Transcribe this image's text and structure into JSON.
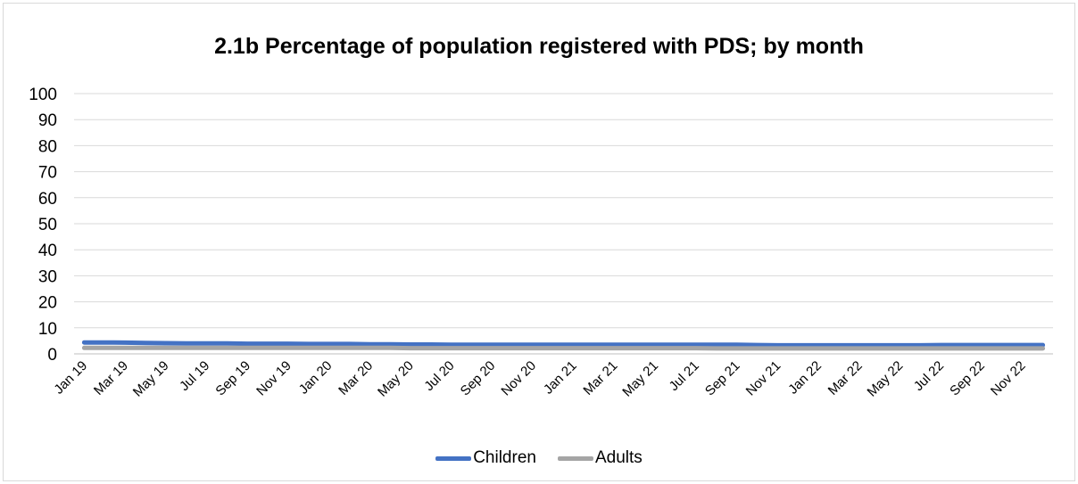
{
  "chart_data": {
    "type": "line",
    "title": "2.1b Percentage of population registered with PDS; by month",
    "xlabel": "",
    "ylabel": "",
    "ylim": [
      0,
      100
    ],
    "yticks": [
      0,
      10,
      20,
      30,
      40,
      50,
      60,
      70,
      80,
      90,
      100
    ],
    "grid": true,
    "legend_position": "bottom",
    "x": [
      "Jan 19",
      "Feb 19",
      "Mar 19",
      "Apr 19",
      "May 19",
      "Jun 19",
      "Jul 19",
      "Aug 19",
      "Sep 19",
      "Oct 19",
      "Nov 19",
      "Dec 19",
      "Jan 20",
      "Feb 20",
      "Mar 20",
      "Apr 20",
      "May 20",
      "Jun 20",
      "Jul 20",
      "Aug 20",
      "Sep 20",
      "Oct 20",
      "Nov 20",
      "Dec 20",
      "Jan 21",
      "Feb 21",
      "Mar 21",
      "Apr 21",
      "May 21",
      "Jun 21",
      "Jul 21",
      "Aug 21",
      "Sep 21",
      "Oct 21",
      "Nov 21",
      "Dec 21",
      "Jan 22",
      "Feb 22",
      "Mar 22",
      "Apr 22",
      "May 22",
      "Jun 22",
      "Jul 22",
      "Aug 22",
      "Sep 22",
      "Oct 22",
      "Nov 22",
      "Dec 22"
    ],
    "x_tick_labels": [
      "Jan 19",
      "Mar 19",
      "May 19",
      "Jul 19",
      "Sep 19",
      "Nov 19",
      "Jan 20",
      "Mar 20",
      "May 20",
      "Jul 20",
      "Sep 20",
      "Nov 20",
      "Jan 21",
      "Mar 21",
      "May 21",
      "Jul 21",
      "Sep 21",
      "Nov 21",
      "Jan 22",
      "Mar 22",
      "May 22",
      "Jul 22",
      "Sep 22",
      "Nov 22"
    ],
    "series": [
      {
        "name": "Children",
        "color": "#4472c4",
        "values": [
          4.4,
          4.4,
          4.3,
          4.2,
          4.1,
          4.0,
          4.0,
          4.0,
          3.9,
          3.9,
          3.9,
          3.8,
          3.8,
          3.8,
          3.7,
          3.7,
          3.6,
          3.6,
          3.5,
          3.5,
          3.5,
          3.5,
          3.5,
          3.5,
          3.5,
          3.5,
          3.5,
          3.5,
          3.5,
          3.5,
          3.5,
          3.5,
          3.5,
          3.4,
          3.3,
          3.3,
          3.3,
          3.3,
          3.3,
          3.3,
          3.3,
          3.3,
          3.4,
          3.4,
          3.4,
          3.4,
          3.4,
          3.4
        ]
      },
      {
        "name": "Adults",
        "color": "#a5a5a5",
        "values": [
          2.3,
          2.3,
          2.3,
          2.3,
          2.3,
          2.3,
          2.3,
          2.3,
          2.3,
          2.3,
          2.3,
          2.3,
          2.3,
          2.3,
          2.3,
          2.3,
          2.2,
          2.2,
          2.2,
          2.2,
          2.2,
          2.2,
          2.2,
          2.2,
          2.2,
          2.2,
          2.2,
          2.2,
          2.2,
          2.2,
          2.2,
          2.1,
          2.1,
          2.1,
          2.1,
          2.1,
          2.1,
          2.1,
          2.1,
          2.1,
          2.1,
          2.1,
          2.1,
          2.1,
          2.1,
          2.1,
          2.1,
          2.1
        ]
      }
    ]
  }
}
